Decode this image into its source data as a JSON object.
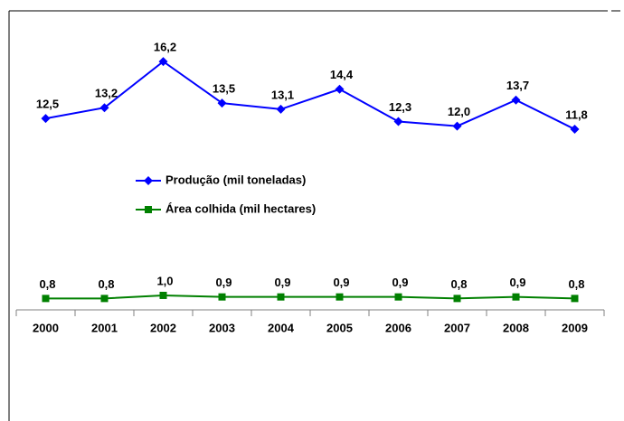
{
  "chart_data": {
    "type": "line",
    "categories": [
      "2000",
      "2001",
      "2002",
      "2003",
      "2004",
      "2005",
      "2006",
      "2007",
      "2008",
      "2009"
    ],
    "series": [
      {
        "name": "Produção (mil toneladas)",
        "color": "#0000ff",
        "marker": "diamond",
        "values": [
          12.5,
          13.2,
          16.2,
          13.5,
          13.1,
          14.4,
          12.3,
          12.0,
          13.7,
          11.8
        ],
        "value_labels": [
          "12,5",
          "13,2",
          "16,2",
          "13,5",
          "13,1",
          "14,4",
          "12,3",
          "12,0",
          "13,7",
          "11,8"
        ]
      },
      {
        "name": "Área colhida (mil hectares)",
        "color": "#008000",
        "marker": "square",
        "values": [
          0.8,
          0.8,
          1.0,
          0.9,
          0.9,
          0.9,
          0.9,
          0.8,
          0.9,
          0.8
        ],
        "value_labels": [
          "0,8",
          "0,8",
          "1,0",
          "0,9",
          "0,9",
          "0,9",
          "0,9",
          "0,8",
          "0,9",
          "0,8"
        ]
      }
    ],
    "ylim": [
      0,
      20
    ],
    "grid": false
  }
}
